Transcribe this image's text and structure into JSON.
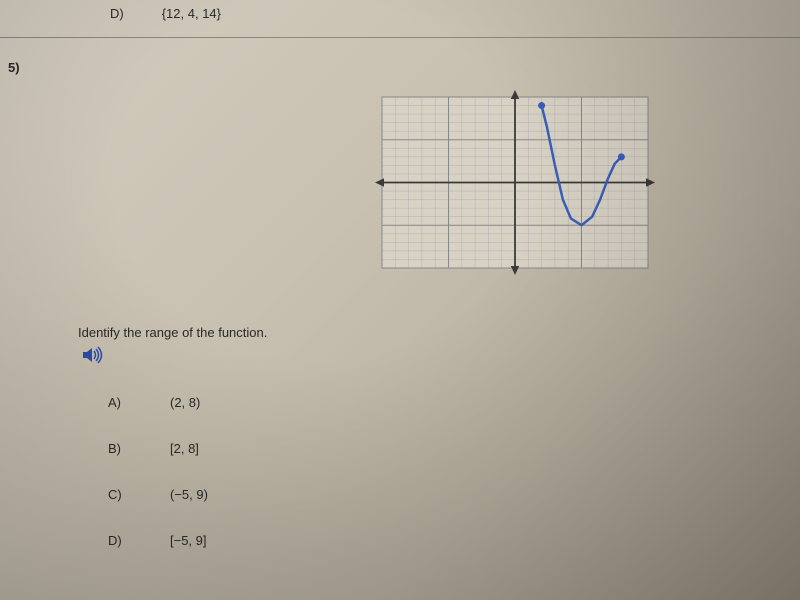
{
  "top_option": {
    "letter": "D)",
    "value": "{12, 4, 14}"
  },
  "question_number": "5)",
  "prompt": "Identify the range of the function.",
  "options": [
    {
      "letter": "A)",
      "value": "(2, 8)"
    },
    {
      "letter": "B)",
      "value": "[2, 8]"
    },
    {
      "letter": "C)",
      "value": "(−5, 9)"
    },
    {
      "letter": "D)",
      "value": "[−5, 9]"
    }
  ],
  "graph": {
    "type": "function-plot",
    "xlim": [
      -10,
      10
    ],
    "ylim": [
      -10,
      10
    ],
    "major_step": 5,
    "minor_step": 1,
    "grid_color": "#888888",
    "minor_grid_color": "#aaaaaa",
    "axis_color": "#3a3a3a",
    "curve_color": "#3a5fb8",
    "curve_width": 2.5,
    "endpoint_fill": "#3a5fb8",
    "endpoint_radius": 3.5,
    "bg_color": "#d8d2c5",
    "arrow_size": 7,
    "curve_points": [
      [
        2,
        9
      ],
      [
        2.4,
        6.5
      ],
      [
        3,
        2
      ],
      [
        3.6,
        -2
      ],
      [
        4.2,
        -4.2
      ],
      [
        5,
        -5
      ],
      [
        5.8,
        -4
      ],
      [
        6.4,
        -2
      ],
      [
        7,
        0.5
      ],
      [
        7.5,
        2.2
      ],
      [
        8,
        3
      ]
    ],
    "endpoints": [
      [
        2,
        9
      ],
      [
        8,
        3
      ]
    ]
  },
  "speaker": {
    "color": "#2a4db0",
    "size": 18
  }
}
